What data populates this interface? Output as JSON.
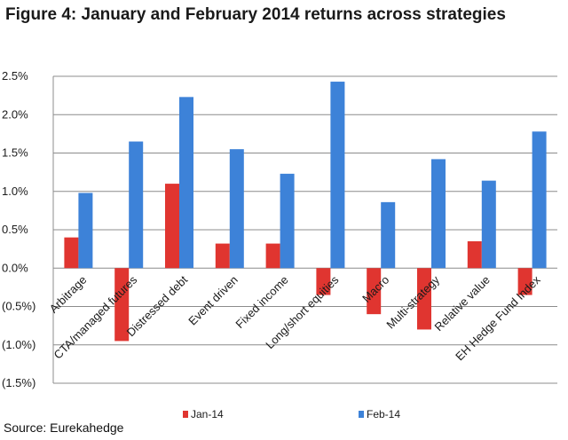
{
  "chart_data": {
    "type": "bar",
    "title": "Figure 4: January and February 2014 returns across strategies",
    "categories": [
      "Arbitrage",
      "CTA/managed futures",
      "Distressed debt",
      "Event driven",
      "Fixed income",
      "Long/short equities",
      "Macro",
      "Multi-strategy",
      "Relative value",
      "EH Hedge Fund Index"
    ],
    "series": [
      {
        "name": "Jan-14",
        "color": "#e03530",
        "values": [
          0.4,
          -0.95,
          1.1,
          0.32,
          0.32,
          -0.35,
          -0.6,
          -0.8,
          0.35,
          -0.35
        ]
      },
      {
        "name": "Feb-14",
        "color": "#3d82d8",
        "values": [
          0.98,
          1.65,
          2.23,
          1.55,
          1.23,
          2.43,
          0.86,
          1.42,
          1.14,
          1.78
        ]
      }
    ],
    "ylim": [
      -1.5,
      2.5
    ],
    "yticks": [
      2.5,
      2.0,
      1.5,
      1.0,
      0.5,
      0.0,
      -0.5,
      -1.0,
      -1.5
    ],
    "ytick_labels": [
      "2.5%",
      "2.0%",
      "1.5%",
      "1.0%",
      "0.5%",
      "0.0%",
      "(0.5%)",
      "(1.0%)",
      "(1.5%)"
    ],
    "grid": true,
    "legend": "bottom",
    "xlabel": "",
    "ylabel": ""
  },
  "source": "Source: Eurekahedge"
}
